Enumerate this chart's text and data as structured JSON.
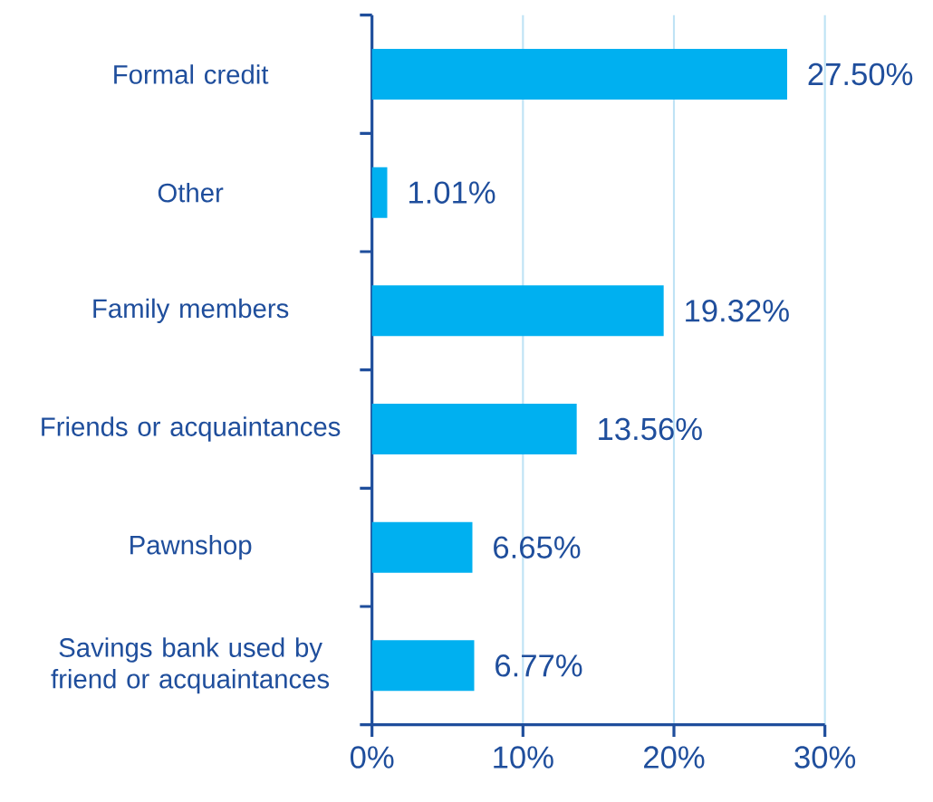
{
  "chart_data": {
    "type": "bar",
    "orientation": "horizontal",
    "categories": [
      "Formal credit",
      "Other",
      "Family members",
      "Friends or acquaintances",
      "Pawnshop",
      "Savings bank used by friend or acquaintances"
    ],
    "values": [
      27.5,
      1.01,
      19.32,
      13.56,
      6.65,
      6.77
    ],
    "value_labels": [
      "27.50%",
      "1.01%",
      "19.32%",
      "13.56%",
      "6.65%",
      "6.77%"
    ],
    "color": "#00b0f0",
    "xlim": [
      0,
      30
    ],
    "xticks": [
      {
        "value": 0,
        "label": "0%"
      },
      {
        "value": 10,
        "label": "10%"
      },
      {
        "value": 20,
        "label": "20%"
      },
      {
        "value": 30,
        "label": "30%"
      }
    ],
    "grid": "x"
  }
}
